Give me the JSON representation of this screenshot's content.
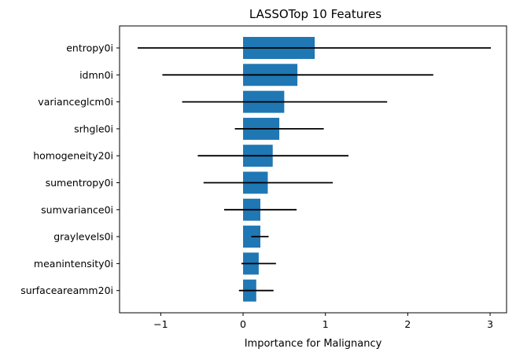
{
  "chart_data": {
    "type": "bar",
    "orientation": "horizontal",
    "title": "LASSOTop 10 Features",
    "xlabel": "Importance for Malignancy",
    "ylabel": "",
    "xlim": [
      -1.5,
      3.2
    ],
    "xticks": [
      -1,
      0,
      1,
      2,
      3
    ],
    "xtick_labels": [
      "−1",
      "0",
      "1",
      "2",
      "3"
    ],
    "bar_color": "#1f77b4",
    "errorbar_color": "#000000",
    "grid": false,
    "categories": [
      "entropy0i",
      "idmn0i",
      "varianceglcm0i",
      "srhgle0i",
      "homogeneity20i",
      "sumentropy0i",
      "sumvariance0i",
      "graylevels0i",
      "meanintensity0i",
      "surfaceareamm20i"
    ],
    "values": [
      0.87,
      0.66,
      0.5,
      0.44,
      0.36,
      0.3,
      0.21,
      0.21,
      0.19,
      0.16
    ],
    "error_low": [
      -1.28,
      -0.98,
      -0.74,
      -0.1,
      -0.55,
      -0.48,
      -0.23,
      0.1,
      -0.02,
      -0.05
    ],
    "error_high": [
      3.01,
      2.31,
      1.75,
      0.98,
      1.28,
      1.09,
      0.65,
      0.31,
      0.4,
      0.37
    ]
  }
}
